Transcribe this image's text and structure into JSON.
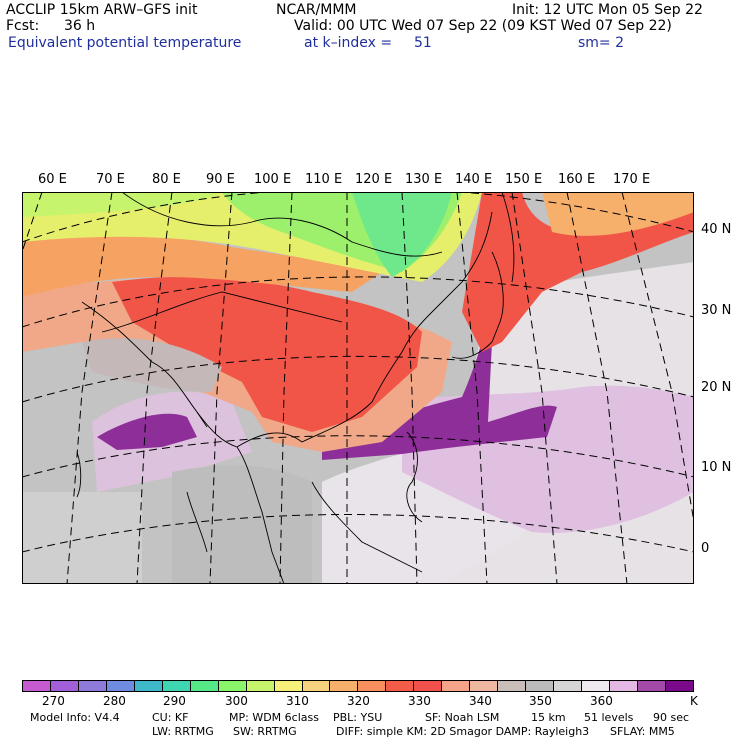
{
  "header": {
    "model": "ACCLIP 15km ARW–GFS init",
    "org": "NCAR/MMM",
    "init": "Init: 12 UTC Mon 05 Sep 22",
    "fcst_label": "Fcst:",
    "fcst_value": "36 h",
    "valid": "Valid: 00 UTC Wed 07 Sep 22 (09 KST Wed 07 Sep 22)",
    "field": "Equivalent potential temperature",
    "level": "at k–index =",
    "level_value": "51",
    "smooth": "sm= 2"
  },
  "map": {
    "lon_labels": [
      "60 E",
      "70 E",
      "80 E",
      "90 E",
      "100 E",
      "110 E",
      "120 E",
      "130 E",
      "140 E",
      "150 E",
      "160 E",
      "170 E"
    ],
    "lat_labels": [
      "40 N",
      "30 N",
      "20 N",
      "10 N",
      "0"
    ]
  },
  "colorbar": {
    "colors": [
      "#c65bd1",
      "#a35fd8",
      "#8d7ad9",
      "#6e8de0",
      "#3fb9c9",
      "#3fd5b3",
      "#55e887",
      "#8af56a",
      "#c6f46c",
      "#f4f07a",
      "#f6d27e",
      "#f7b06c",
      "#f88f5f",
      "#f45c4a",
      "#f2504a",
      "#f5a48a",
      "#eeb8a0",
      "#c9beb8",
      "#bbbbbb",
      "#d6d6d6",
      "#efe8ef",
      "#e3b8e3",
      "#a34aa8",
      "#7a0a8a"
    ],
    "ticks": [
      "270",
      "280",
      "290",
      "300",
      "310",
      "320",
      "330",
      "340",
      "350",
      "360"
    ],
    "unit": "K"
  },
  "footer": {
    "line1": [
      {
        "text": "Model Info: V4.4"
      },
      {
        "text": "CU: KF"
      },
      {
        "text": "MP: WDM 6class"
      },
      {
        "text": "PBL: YSU"
      },
      {
        "text": "SF: Noah LSM"
      },
      {
        "text": "15 km"
      },
      {
        "text": "51 levels"
      },
      {
        "text": "90 sec"
      }
    ],
    "line2": [
      {
        "text": "LW: RRTMG"
      },
      {
        "text": "SW: RRTMG"
      },
      {
        "text": "DIFF: simple KM: 2D Smagor DAMP: Rayleigh3"
      },
      {
        "text": "SFLAY: MM5"
      }
    ]
  }
}
